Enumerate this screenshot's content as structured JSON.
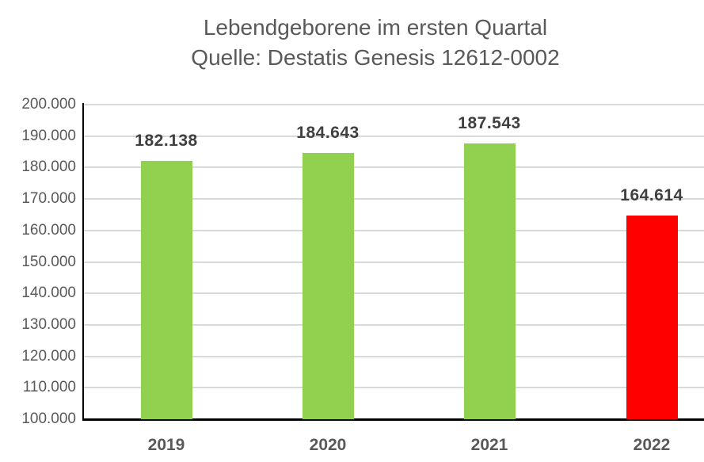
{
  "chart_data": {
    "type": "bar",
    "title": "Lebendgeborene im ersten Quartal",
    "subtitle": "Quelle: Destatis Genesis 12612-0002",
    "categories": [
      "2019",
      "2020",
      "2021",
      "2022"
    ],
    "values": [
      182138,
      184643,
      187543,
      164614
    ],
    "value_labels": [
      "182.138",
      "184.643",
      "187.543",
      "164.614"
    ],
    "bar_colors": [
      "#92D050",
      "#92D050",
      "#92D050",
      "#FF0000"
    ],
    "ylim": [
      100000,
      200000
    ],
    "ytick_step": 10000,
    "ytick_labels": [
      "100.000",
      "110.000",
      "120.000",
      "130.000",
      "140.000",
      "150.000",
      "160.000",
      "170.000",
      "180.000",
      "190.000",
      "200.000"
    ],
    "xlabel": "",
    "ylabel": "",
    "grid": true,
    "legend": false
  },
  "colors": {
    "green_bar": "#92D050",
    "red_bar": "#FF0000",
    "gridline": "#D9D9D9",
    "axis_line": "#000000",
    "title_text": "#595959",
    "tick_text": "#595959",
    "value_label_text": "#404040"
  }
}
